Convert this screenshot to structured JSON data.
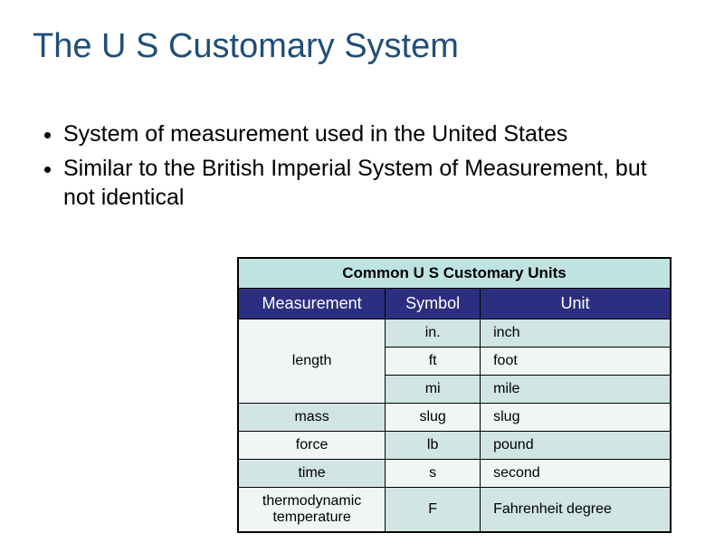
{
  "title": "The U S Customary System",
  "bullets": [
    "System of measurement used in the United States",
    "Similar to the British Imperial System of Measurement, but not identical"
  ],
  "table": {
    "caption": "Common U S Customary Units",
    "columns": [
      "Measurement",
      "Symbol",
      "Unit"
    ],
    "column_widths": [
      "34%",
      "22%",
      "44%"
    ],
    "colors": {
      "caption_bg": "#bfe3e0",
      "header_bg": "#2c2f80",
      "header_fg": "#ffffff",
      "row_light": "#f0f6f6",
      "row_tint": "#d1e5e3",
      "border": "#000000"
    },
    "rows": [
      {
        "measurement": "length",
        "symbol": "in.",
        "unit": "inch",
        "rowspan": 3,
        "shade_sym_unit": "tint",
        "shade_meas": "light"
      },
      {
        "measurement": null,
        "symbol": "ft",
        "unit": "foot",
        "shade_sym_unit": "light"
      },
      {
        "measurement": null,
        "symbol": "mi",
        "unit": "mile",
        "shade_sym_unit": "tint"
      },
      {
        "measurement": "mass",
        "symbol": "slug",
        "unit": "slug",
        "shade_meas": "tint",
        "shade_sym_unit": "light"
      },
      {
        "measurement": "force",
        "symbol": "lb",
        "unit": "pound",
        "shade_meas": "light",
        "shade_sym_unit": "tint"
      },
      {
        "measurement": "time",
        "symbol": "s",
        "unit": "second",
        "shade_meas": "tint",
        "shade_sym_unit": "light"
      },
      {
        "measurement": "thermodynamic temperature",
        "symbol": "F",
        "unit": "Fahrenheit degree",
        "shade_meas": "light",
        "shade_sym_unit": "tint"
      }
    ]
  }
}
